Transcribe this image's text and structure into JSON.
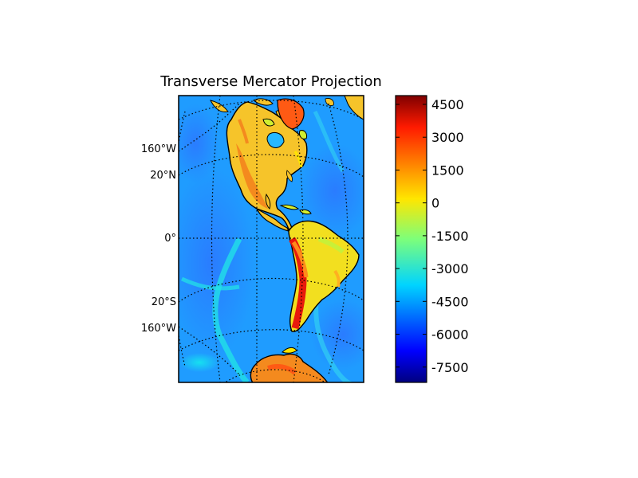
{
  "figure": {
    "title": "Transverse Mercator Projection"
  },
  "map": {
    "projection": "Transverse Mercator",
    "region": "Americas",
    "field": "topography/bathymetry",
    "colormap": "jet",
    "meridian_labels": [
      "160°W",
      "160°W"
    ],
    "parallel_labels": [
      "20°N",
      "0°",
      "20°S"
    ]
  },
  "colorbar": {
    "ticks": [
      "4500",
      "3000",
      "1500",
      "0",
      "-1500",
      "-3000",
      "-4500",
      "-6000",
      "-7500"
    ],
    "tick_values": [
      4500,
      3000,
      1500,
      0,
      -1500,
      -3000,
      -4500,
      -6000,
      -7500
    ],
    "range": [
      -8200,
      4900
    ]
  }
}
